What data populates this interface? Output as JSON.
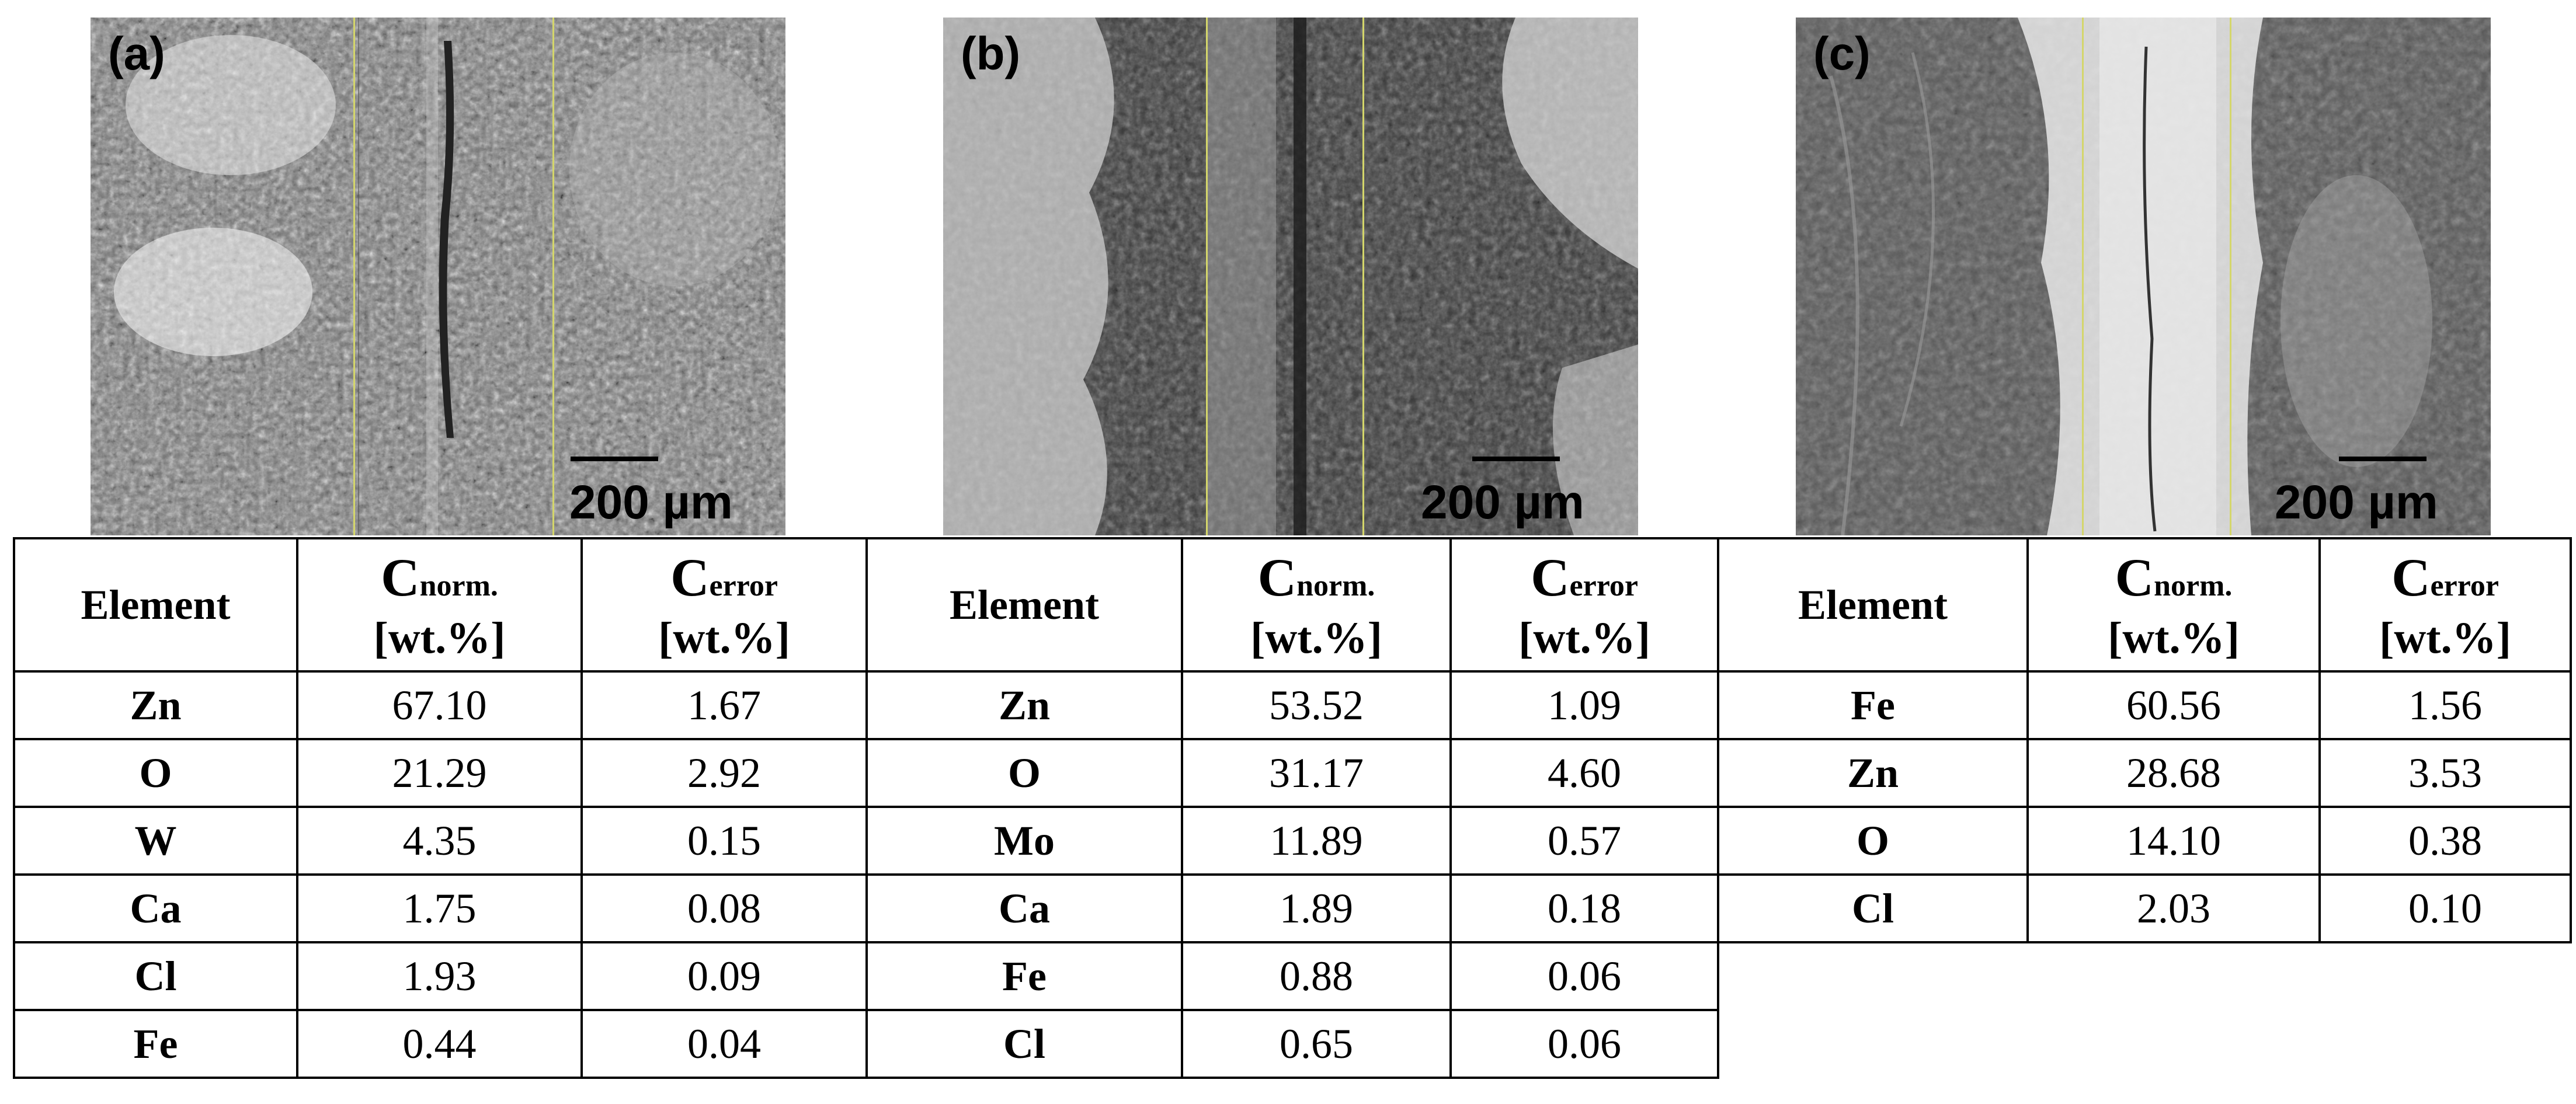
{
  "panels": [
    {
      "label": "(a)",
      "scale": "200 µm"
    },
    {
      "label": "(b)",
      "scale": "200 µm"
    },
    {
      "label": "(c)",
      "scale": "200 µm"
    }
  ],
  "header": {
    "element": "Element",
    "c_letter": "C",
    "norm_sub": "norm.",
    "error_sub": "error",
    "unit": "[wt.%]"
  },
  "tables": [
    {
      "rows": [
        {
          "el": "Zn",
          "norm": "67.10",
          "err": "1.67"
        },
        {
          "el": "O",
          "norm": "21.29",
          "err": "2.92"
        },
        {
          "el": "W",
          "norm": "4.35",
          "err": "0.15"
        },
        {
          "el": "Ca",
          "norm": "1.75",
          "err": "0.08"
        },
        {
          "el": "Cl",
          "norm": "1.93",
          "err": "0.09"
        },
        {
          "el": "Fe",
          "norm": "0.44",
          "err": "0.04"
        }
      ]
    },
    {
      "rows": [
        {
          "el": "Zn",
          "norm": "53.52",
          "err": "1.09"
        },
        {
          "el": "O",
          "norm": "31.17",
          "err": "4.60"
        },
        {
          "el": "Mo",
          "norm": "11.89",
          "err": "0.57"
        },
        {
          "el": "Ca",
          "norm": "1.89",
          "err": "0.18"
        },
        {
          "el": "Fe",
          "norm": "0.88",
          "err": "0.06"
        },
        {
          "el": "Cl",
          "norm": "0.65",
          "err": "0.06"
        }
      ]
    },
    {
      "rows": [
        {
          "el": "Fe",
          "norm": "60.56",
          "err": "1.56"
        },
        {
          "el": "Zn",
          "norm": "28.68",
          "err": "3.53"
        },
        {
          "el": "O",
          "norm": "14.10",
          "err": "0.38"
        },
        {
          "el": "Cl",
          "norm": "2.03",
          "err": "0.10"
        }
      ]
    }
  ]
}
